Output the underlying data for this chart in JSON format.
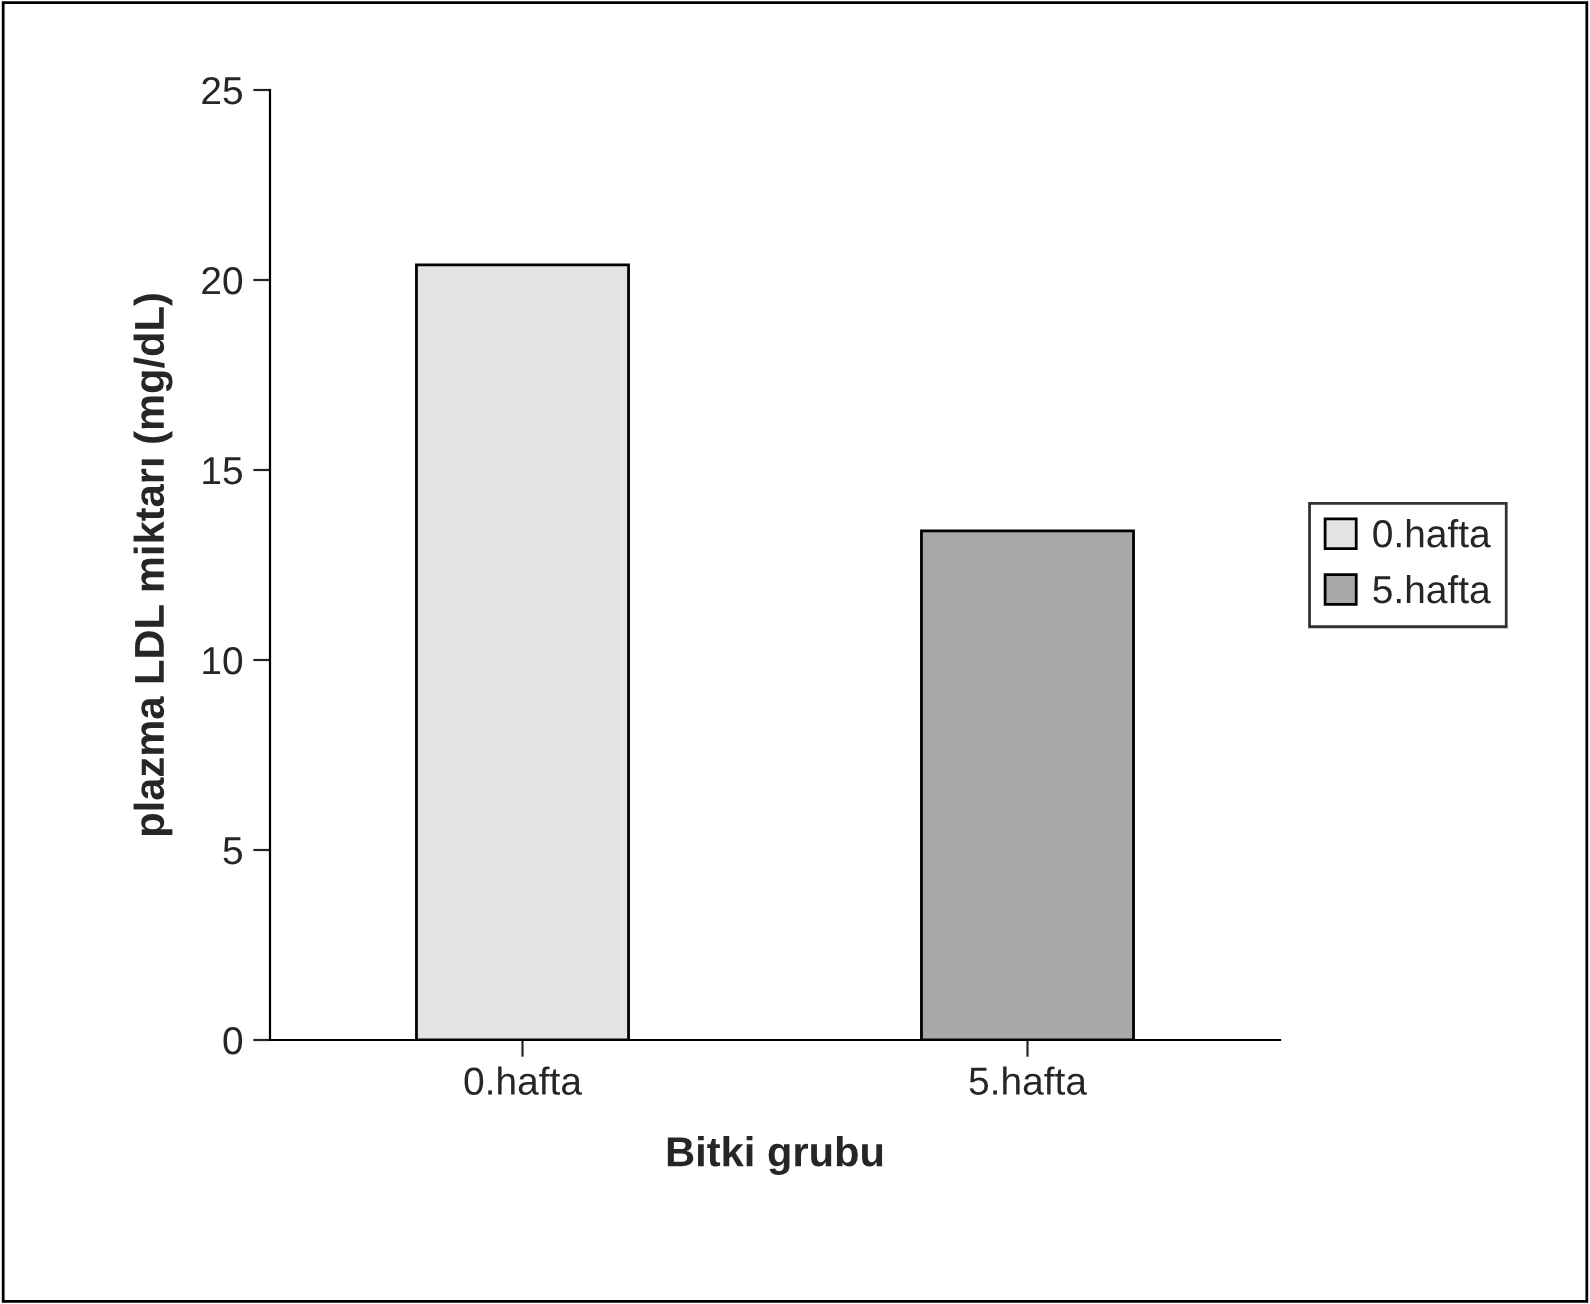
{
  "chart_data": {
    "type": "bar",
    "xlabel": "Bitki grubu",
    "ylabel": "plazma LDL miktarı (mg/dL)",
    "categories": [
      "0.hafta",
      "5.hafta"
    ],
    "series": [
      {
        "name": "0.hafta",
        "color": "#e3e3e3",
        "values": [
          20.4,
          null
        ]
      },
      {
        "name": "5.hafta",
        "color": "#a8a8a8",
        "values": [
          null,
          13.4
        ]
      }
    ],
    "ylim": [
      0,
      25
    ],
    "yticks": [
      0,
      5,
      10,
      15,
      20,
      25
    ],
    "grid": false,
    "legend": "right"
  }
}
